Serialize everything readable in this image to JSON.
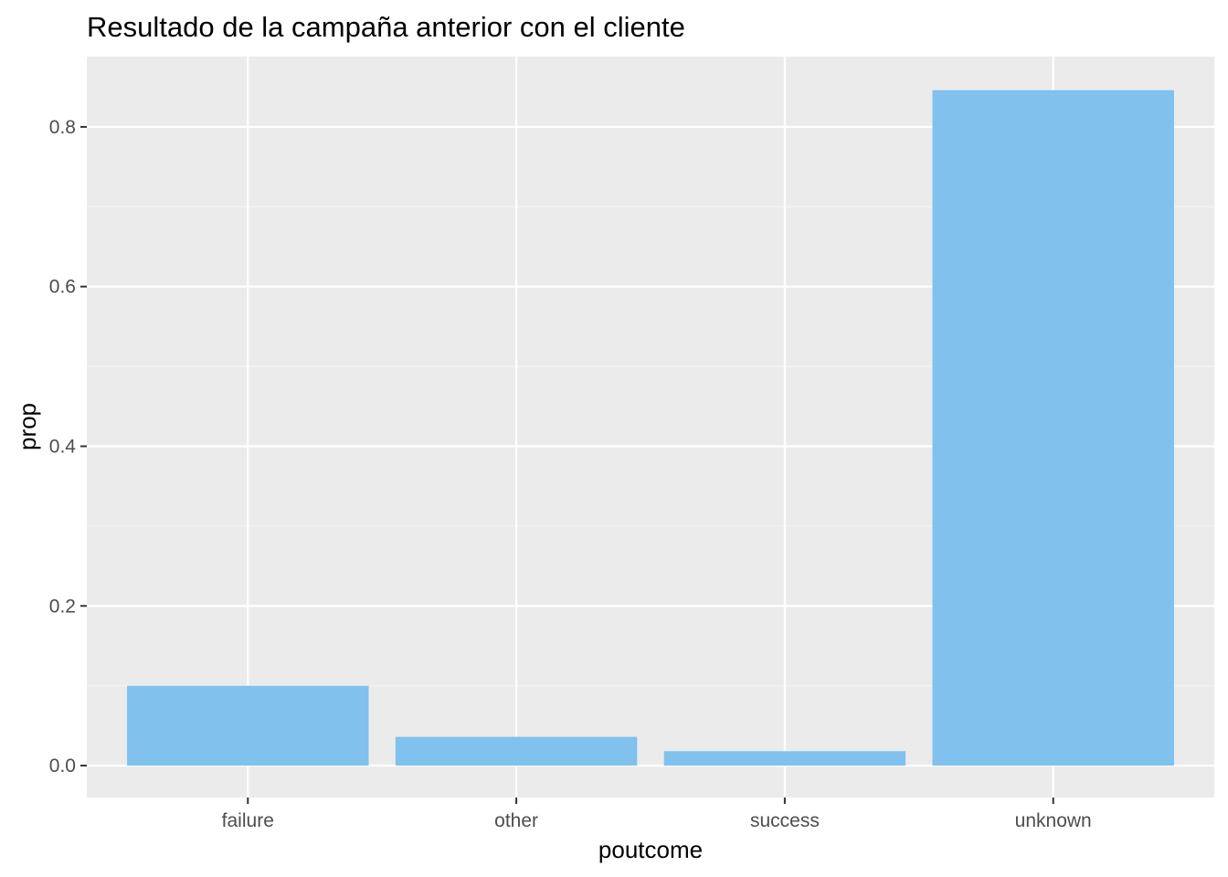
{
  "chart_data": {
    "type": "bar",
    "title": "Resultado de la campaña anterior con el cliente",
    "xlabel": "poutcome",
    "ylabel": "prop",
    "categories": [
      "failure",
      "other",
      "success",
      "unknown"
    ],
    "values": [
      0.1,
      0.036,
      0.018,
      0.846
    ],
    "ylim": [
      -0.04,
      0.888
    ],
    "yticks": [
      0.0,
      0.2,
      0.4,
      0.6,
      0.8
    ],
    "ytick_labels": [
      "0.0",
      "0.2",
      "0.4",
      "0.6",
      "0.8"
    ],
    "grid": true,
    "legend": "none",
    "colors": {
      "bar": "#80c1ee",
      "panel_background": "#ebebeb",
      "grid_major": "#ffffff",
      "grid_minor": "#f5f5f5",
      "tick": "#333333",
      "tick_label": "#4d4d4d"
    }
  }
}
